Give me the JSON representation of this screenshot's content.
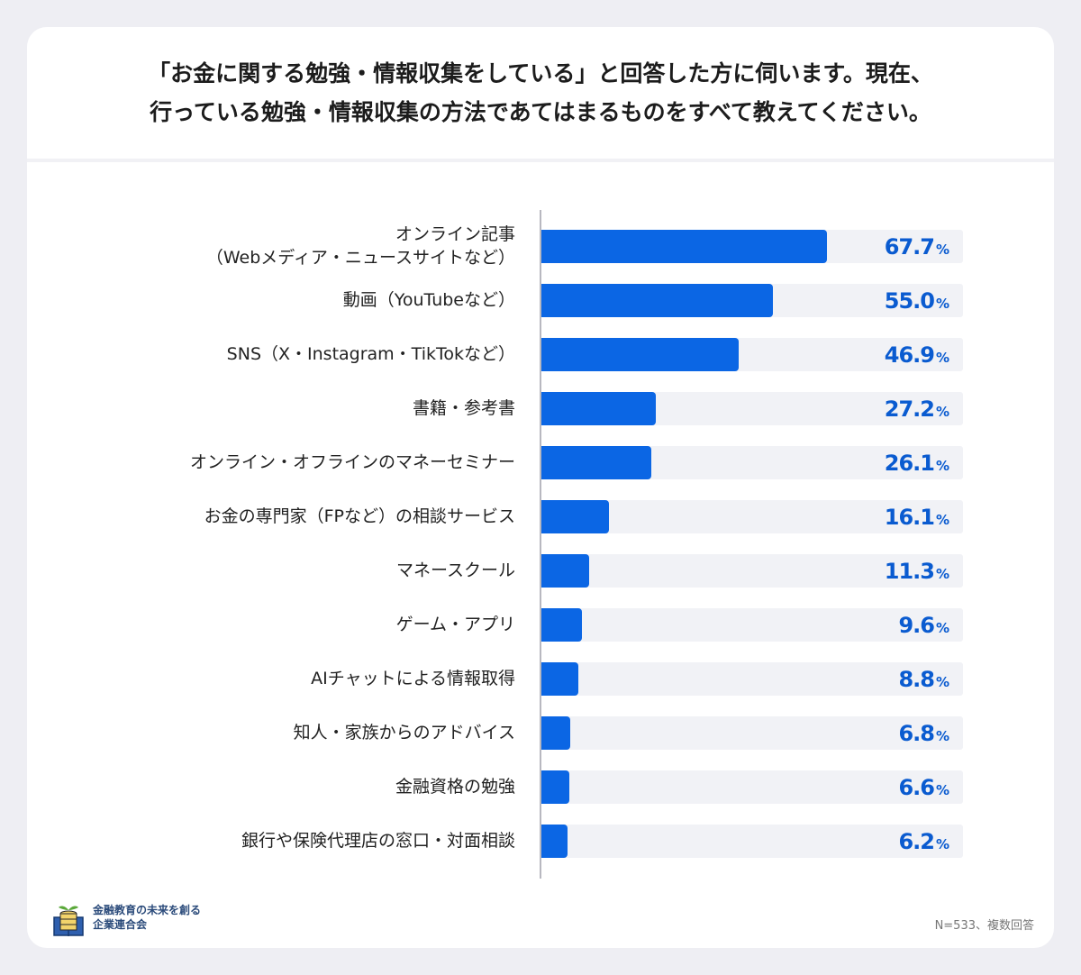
{
  "chart_data": {
    "type": "bar",
    "orientation": "horizontal",
    "title": [
      "「お金に関する勉強・情報収集をしている」と回答した方に伺います。現在、",
      "行っている勉強・情報収集の方法であてはまるものをすべて教えてください。"
    ],
    "categories": [
      [
        "オンライン記事",
        "（Webメディア・ニュースサイトなど）"
      ],
      [
        "動画（YouTubeなど）"
      ],
      [
        "SNS（X・Instagram・TikTokなど）"
      ],
      [
        "書籍・参考書"
      ],
      [
        "オンライン・オフラインのマネーセミナー"
      ],
      [
        "お金の専門家（FPなど）の相談サービス"
      ],
      [
        "マネースクール"
      ],
      [
        "ゲーム・アプリ"
      ],
      [
        "AIチャットによる情報取得"
      ],
      [
        "知人・家族からのアドバイス"
      ],
      [
        "金融資格の勉強"
      ],
      [
        "銀行や保険代理店の窓口・対面相談"
      ]
    ],
    "values": [
      67.7,
      55.0,
      46.9,
      27.2,
      26.1,
      16.1,
      11.3,
      9.6,
      8.8,
      6.8,
      6.6,
      6.2
    ],
    "value_labels": [
      "67.7",
      "55.0",
      "46.9",
      "27.2",
      "26.1",
      "16.1",
      "11.3",
      "9.6",
      "8.8",
      "6.8",
      "6.6",
      "6.2"
    ],
    "unit": "%",
    "xlim": [
      0,
      100
    ],
    "grid": false,
    "colors": {
      "bar": "#0b66e4",
      "track": "#f1f2f6",
      "value": "#0a5bd0"
    }
  },
  "footer": {
    "org_lines": [
      "金融教育の未来を創る",
      "企業連合会"
    ],
    "note": "N=533、複数回答"
  }
}
